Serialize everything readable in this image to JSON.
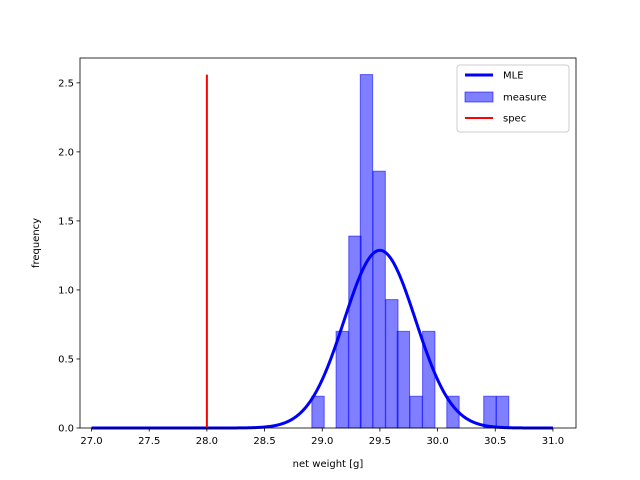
{
  "chart_data": {
    "type": "histogram",
    "title": "",
    "xlabel": "net weight [g]",
    "ylabel": "frequency",
    "xlim": [
      26.9,
      31.2
    ],
    "ylim": [
      0,
      2.68
    ],
    "xticks": [
      27.0,
      27.5,
      28.0,
      28.5,
      29.0,
      29.5,
      30.0,
      30.5,
      31.0
    ],
    "yticks": [
      0.0,
      0.5,
      1.0,
      1.5,
      2.0,
      2.5
    ],
    "grid": false,
    "legend": {
      "placement": "top-right",
      "entries": [
        "MLE",
        "measure",
        "spec"
      ]
    },
    "series": [
      {
        "name": "MLE",
        "kind": "line",
        "color": "#0000ff",
        "distribution": "normal",
        "mean": 29.5,
        "std": 0.31,
        "x_range": [
          27.0,
          31.0
        ]
      },
      {
        "name": "measure",
        "kind": "bars",
        "color": "#0000ff",
        "opacity": 0.5,
        "bin_width": 0.107,
        "bins": [
          {
            "x0": 28.91,
            "height": 0.23
          },
          {
            "x0": 29.12,
            "height": 0.7
          },
          {
            "x0": 29.23,
            "height": 1.39
          },
          {
            "x0": 29.33,
            "height": 2.56
          },
          {
            "x0": 29.44,
            "height": 1.86
          },
          {
            "x0": 29.55,
            "height": 0.93
          },
          {
            "x0": 29.65,
            "height": 0.7
          },
          {
            "x0": 29.76,
            "height": 0.23
          },
          {
            "x0": 29.87,
            "height": 0.7
          },
          {
            "x0": 30.08,
            "height": 0.23
          },
          {
            "x0": 30.4,
            "height": 0.23
          },
          {
            "x0": 30.51,
            "height": 0.23
          }
        ]
      },
      {
        "name": "spec",
        "kind": "vline",
        "color": "#ff0000",
        "x": 28.0,
        "y_range": [
          0,
          2.56
        ]
      }
    ]
  }
}
